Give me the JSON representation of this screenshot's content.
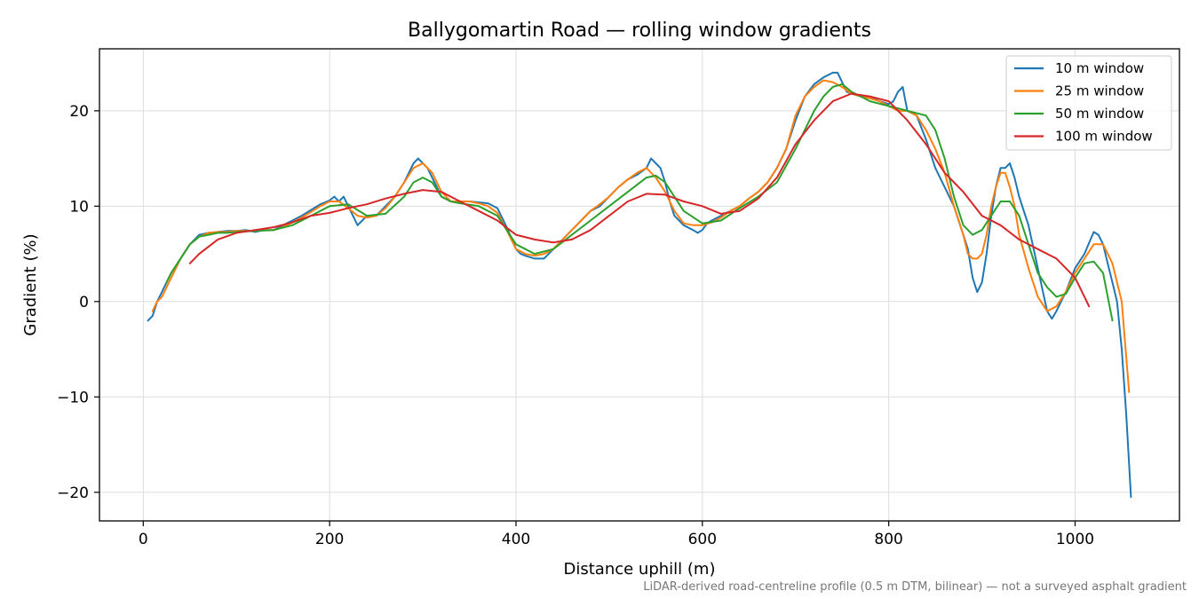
{
  "chart_data": {
    "type": "line",
    "title": "Ballygomartin Road — rolling window gradients",
    "xlabel": "Distance uphill (m)",
    "ylabel": "Gradient (%)",
    "xlim": [
      -47,
      1112
    ],
    "ylim": [
      -23,
      26.5
    ],
    "xticks": [
      0,
      200,
      400,
      600,
      800,
      1000
    ],
    "yticks": [
      -20,
      -10,
      0,
      10,
      20
    ],
    "xtick_labels": [
      "0",
      "200",
      "400",
      "600",
      "800",
      "1000"
    ],
    "ytick_labels": [
      "−20",
      "−10",
      "0",
      "10",
      "20"
    ],
    "grid": true,
    "legend_position": "top-right",
    "footnote": "LiDAR-derived road-centreline profile (0.5 m DTM, bilinear) — not a surveyed asphalt gradient",
    "series": [
      {
        "name": "10 m window",
        "color": "#1f77b4",
        "x": [
          5,
          10,
          15,
          20,
          25,
          30,
          40,
          50,
          60,
          70,
          80,
          90,
          100,
          110,
          120,
          130,
          140,
          150,
          160,
          170,
          180,
          190,
          200,
          205,
          210,
          215,
          220,
          225,
          230,
          235,
          240,
          250,
          260,
          270,
          280,
          290,
          295,
          300,
          305,
          310,
          315,
          320,
          330,
          340,
          350,
          360,
          370,
          380,
          390,
          400,
          405,
          410,
          420,
          430,
          440,
          450,
          460,
          470,
          480,
          490,
          500,
          510,
          520,
          530,
          540,
          545,
          550,
          555,
          560,
          565,
          570,
          580,
          590,
          595,
          600,
          605,
          610,
          620,
          630,
          640,
          650,
          660,
          670,
          680,
          690,
          700,
          710,
          720,
          730,
          740,
          745,
          750,
          755,
          760,
          770,
          780,
          790,
          800,
          805,
          810,
          815,
          820,
          830,
          840,
          850,
          860,
          870,
          880,
          885,
          890,
          895,
          900,
          905,
          910,
          915,
          920,
          925,
          930,
          935,
          940,
          950,
          960,
          970,
          975,
          980,
          990,
          1000,
          1010,
          1020,
          1025,
          1030,
          1035,
          1040,
          1045,
          1050,
          1055,
          1060
        ],
        "y": [
          -2,
          -1.5,
          0,
          1,
          2,
          3,
          4.5,
          6,
          7,
          7.2,
          7.3,
          7.4,
          7.4,
          7.5,
          7.3,
          7.5,
          7.5,
          8,
          8.5,
          9,
          9.6,
          10.2,
          10.6,
          11,
          10.5,
          11,
          10,
          9,
          8,
          8.5,
          9,
          9,
          10,
          11,
          12.5,
          14.5,
          15,
          14.5,
          14,
          13,
          12,
          11,
          10.5,
          10.5,
          10.5,
          10.4,
          10.3,
          9.8,
          7.8,
          5.5,
          5,
          4.8,
          4.5,
          4.5,
          5.5,
          6.5,
          7.5,
          8.5,
          9.5,
          10,
          11,
          12,
          12.8,
          13.3,
          14,
          15,
          14.5,
          14,
          12.5,
          10.5,
          9,
          8,
          7.5,
          7.2,
          7.5,
          8.2,
          8.5,
          9,
          9.5,
          10,
          10.8,
          11.5,
          12.5,
          14,
          16,
          19,
          21.5,
          22.8,
          23.5,
          24,
          24,
          23,
          22,
          21.8,
          21.5,
          21.5,
          21,
          20.7,
          21,
          22,
          22.5,
          20,
          19.5,
          17,
          14,
          12,
          10,
          7,
          5.5,
          2.5,
          1,
          2,
          5,
          9,
          12,
          14,
          14,
          14.5,
          13,
          11,
          8,
          3.5,
          -1,
          -1.8,
          -1,
          1,
          3.5,
          5,
          7.3,
          7,
          6,
          4,
          2,
          0,
          -5,
          -12,
          -20.5
        ]
      },
      {
        "name": "25 m window",
        "color": "#ff7f0e",
        "x": [
          10,
          15,
          20,
          30,
          40,
          50,
          60,
          70,
          80,
          90,
          100,
          110,
          120,
          130,
          140,
          150,
          160,
          170,
          180,
          190,
          200,
          210,
          220,
          230,
          240,
          250,
          260,
          270,
          280,
          290,
          300,
          310,
          320,
          330,
          340,
          350,
          360,
          370,
          380,
          390,
          400,
          410,
          420,
          430,
          440,
          450,
          460,
          470,
          480,
          490,
          500,
          510,
          520,
          530,
          540,
          550,
          560,
          570,
          580,
          590,
          600,
          610,
          620,
          630,
          640,
          650,
          660,
          670,
          680,
          690,
          700,
          710,
          720,
          730,
          740,
          750,
          760,
          770,
          780,
          790,
          800,
          810,
          820,
          830,
          840,
          850,
          860,
          870,
          880,
          885,
          890,
          895,
          900,
          905,
          910,
          915,
          920,
          925,
          930,
          935,
          940,
          950,
          960,
          970,
          980,
          990,
          1000,
          1010,
          1020,
          1030,
          1040,
          1050,
          1058
        ],
        "y": [
          -1,
          0,
          0.5,
          2.5,
          4.5,
          6,
          6.8,
          7.2,
          7.3,
          7.3,
          7.4,
          7.4,
          7.4,
          7.5,
          7.5,
          7.8,
          8.3,
          8.8,
          9.4,
          10,
          10.5,
          10.5,
          9.8,
          9,
          8.8,
          9,
          9.8,
          11,
          12.5,
          14,
          14.5,
          13.5,
          11.5,
          10.5,
          10.5,
          10.5,
          10.3,
          10,
          9.3,
          7.5,
          5.5,
          5,
          4.8,
          5,
          5.5,
          6.5,
          7.5,
          8.5,
          9.5,
          10.2,
          11,
          12,
          12.8,
          13.5,
          14,
          13,
          11.5,
          9.5,
          8.2,
          8,
          8,
          8.3,
          8.8,
          9.5,
          10,
          10.8,
          11.5,
          12.5,
          14,
          16,
          19.5,
          21.5,
          22.5,
          23.2,
          23,
          22.5,
          21.8,
          21.5,
          21.3,
          21,
          20.5,
          20,
          20,
          19.5,
          18,
          16,
          13.5,
          10,
          7,
          5,
          4.5,
          4.5,
          5,
          7,
          10,
          12,
          13.5,
          13.5,
          12,
          10,
          7,
          3.5,
          0.5,
          -1,
          -0.5,
          1,
          3,
          4.5,
          6,
          6,
          4,
          0,
          -9.5
        ]
      },
      {
        "name": "50 m window",
        "color": "#2ca02c",
        "x": [
          25,
          30,
          40,
          50,
          60,
          70,
          80,
          90,
          100,
          120,
          140,
          160,
          180,
          200,
          220,
          240,
          260,
          280,
          290,
          300,
          310,
          320,
          330,
          340,
          360,
          380,
          390,
          400,
          410,
          420,
          440,
          460,
          480,
          500,
          520,
          540,
          550,
          560,
          570,
          580,
          600,
          620,
          640,
          660,
          680,
          700,
          720,
          730,
          740,
          750,
          760,
          780,
          800,
          820,
          840,
          850,
          860,
          870,
          880,
          890,
          900,
          910,
          920,
          930,
          940,
          950,
          960,
          970,
          980,
          990,
          1000,
          1010,
          1020,
          1030,
          1040
        ],
        "y": [
          2,
          3,
          4.5,
          6,
          6.8,
          7,
          7.2,
          7.2,
          7.3,
          7.4,
          7.5,
          8,
          9,
          10,
          10.2,
          9,
          9.2,
          11,
          12.5,
          13,
          12.5,
          11,
          10.5,
          10.3,
          10,
          9,
          7.5,
          6,
          5.5,
          5,
          5.5,
          7,
          8.5,
          10,
          11.5,
          13,
          13.2,
          12.5,
          11,
          9.5,
          8.2,
          8.5,
          9.8,
          11,
          12.5,
          16,
          20,
          21.5,
          22.5,
          22.8,
          22,
          21,
          20.5,
          20,
          19.5,
          18,
          15,
          11,
          8,
          7,
          7.5,
          9,
          10.5,
          10.5,
          9,
          6,
          3,
          1.5,
          0.5,
          0.8,
          2.5,
          4,
          4.2,
          3,
          -2
        ]
      },
      {
        "name": "100 m window",
        "color": "#d62728",
        "x": [
          50,
          60,
          80,
          100,
          120,
          140,
          160,
          180,
          200,
          220,
          240,
          260,
          280,
          300,
          320,
          340,
          360,
          380,
          400,
          420,
          440,
          460,
          480,
          500,
          520,
          540,
          560,
          580,
          600,
          620,
          640,
          660,
          680,
          700,
          720,
          740,
          760,
          780,
          800,
          820,
          840,
          860,
          870,
          880,
          900,
          920,
          940,
          960,
          980,
          1000,
          1010,
          1015
        ],
        "y": [
          4,
          5,
          6.5,
          7.2,
          7.5,
          7.8,
          8.3,
          9,
          9.3,
          9.8,
          10.2,
          10.8,
          11.3,
          11.7,
          11.5,
          10.5,
          9.5,
          8.5,
          7,
          6.5,
          6.2,
          6.5,
          7.5,
          9,
          10.5,
          11.3,
          11.2,
          10.5,
          10,
          9.2,
          9.5,
          10.8,
          13,
          16.5,
          19,
          21,
          21.8,
          21.5,
          21,
          19,
          16.5,
          13.5,
          12.5,
          11.5,
          9,
          8,
          6.5,
          5.5,
          4.5,
          2.5,
          0.5,
          -0.5
        ]
      }
    ]
  }
}
